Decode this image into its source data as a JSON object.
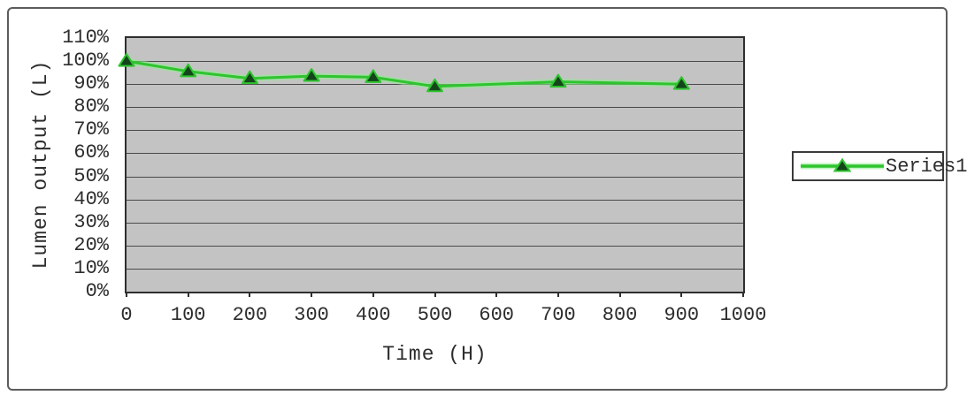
{
  "chart_data": {
    "type": "line",
    "title": "",
    "xlabel": "Time (H)",
    "ylabel": "Lumen output (L)",
    "series": [
      {
        "name": "Series1",
        "x": [
          0,
          100,
          200,
          300,
          400,
          500,
          700,
          900
        ],
        "values": [
          100,
          95.5,
          92.5,
          93.5,
          93,
          89,
          91,
          90
        ]
      }
    ],
    "x_ticks": [
      0,
      100,
      200,
      300,
      400,
      500,
      600,
      700,
      800,
      900,
      1000
    ],
    "y_ticks": [
      "110%",
      "100%",
      "90%",
      "80%",
      "70%",
      "60%",
      "50%",
      "40%",
      "30%",
      "20%",
      "10%",
      "0%"
    ],
    "xlim": [
      0,
      1000
    ],
    "ylim": [
      0,
      110
    ],
    "grid": "horizontal",
    "legend_position": "right",
    "marker": "triangle",
    "colors": {
      "line": "#2fc42f",
      "line_glow": "#8cee8c",
      "marker_fill": "#14451a",
      "plot_bg": "#c3c3c3",
      "grid": "#4a4a4a",
      "text": "#2d2d2d",
      "frame_border": "#5c5c5c"
    }
  }
}
